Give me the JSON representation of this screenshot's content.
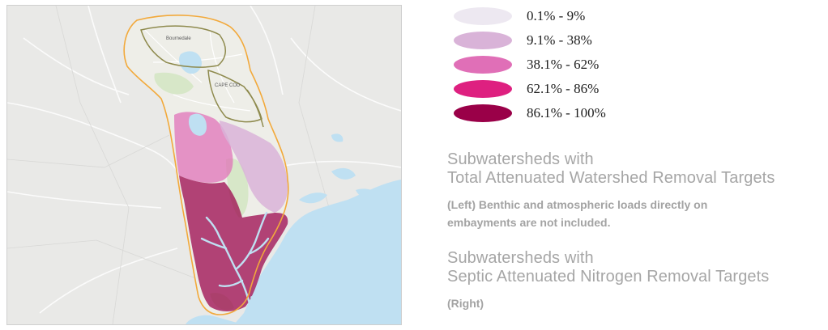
{
  "map": {
    "place_labels": [
      "Bournedale",
      "CAPE COD"
    ],
    "colors": {
      "background": "#e9e9e7",
      "water": "#bfe0f2",
      "study_outline": "#f2a93b",
      "subwatershed_outline": "#8e8a4d",
      "road": "#ffffff"
    }
  },
  "legend": {
    "items": [
      {
        "label": "0.1% - 9%",
        "color": "#ede8f1"
      },
      {
        "label": "9.1% - 38%",
        "color": "#d9b3d8"
      },
      {
        "label": "38.1% - 62%",
        "color": "#e06fb7"
      },
      {
        "label": "62.1% - 86%",
        "color": "#de2080"
      },
      {
        "label": "86.1% - 100%",
        "color": "#9a0048"
      }
    ]
  },
  "text": {
    "section1_title_line1": "Subwatersheds with",
    "section1_title_line2": "Total Attenuated Watershed Removal Targets",
    "section1_note": "(Left) Benthic and atmospheric loads directly on embayments are not included.",
    "section2_title_line1": "Subwatersheds with",
    "section2_title_line2": "Septic Attenuated Nitrogen Removal Targets",
    "section2_note": "(Right)"
  }
}
